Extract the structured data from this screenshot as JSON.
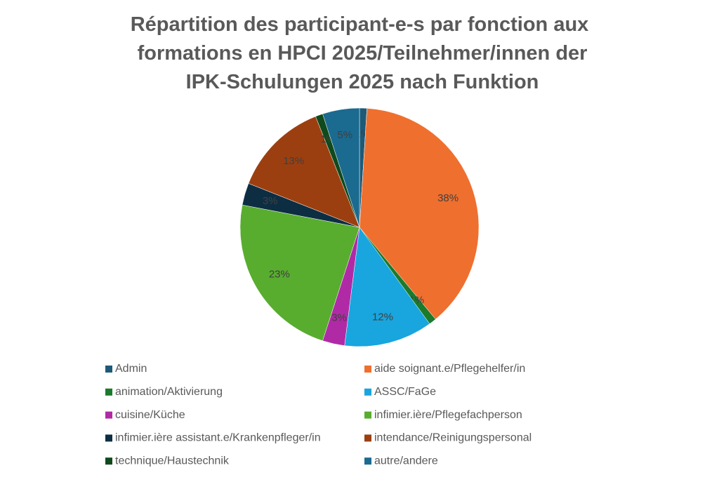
{
  "chart_data": {
    "type": "pie",
    "title": "Répartition des participant-e-s par fonction aux formations en HPCI 2025/Teilnehmer/innen der IPK-Schulungen 2025 nach Funktion",
    "categories": [
      "Admin",
      "aide soignant.e/Pflegehelfer/in",
      "animation/Aktivierung",
      "ASSC/FaGe",
      "cuisine/Küche",
      "infimier.ière/Pflegefachperson",
      "infimier.ière assistant.e/Krankenpfleger/in",
      "intendance/Reinigungspersonal",
      "technique/Haustechnik",
      "autre/andere"
    ],
    "values": [
      1,
      38,
      1,
      12,
      3,
      23,
      3,
      13,
      1,
      5
    ],
    "value_labels": [
      "1%",
      "38%",
      "1%",
      "12%",
      "3%",
      "23%",
      "3%",
      "13%",
      "1%",
      "5%"
    ],
    "colors": [
      "#1d5a78",
      "#ef6f2e",
      "#1b7a2c",
      "#19a5de",
      "#b02aa6",
      "#58ad2f",
      "#0d2e42",
      "#9c3f10",
      "#104a1c",
      "#1b6a90"
    ]
  }
}
